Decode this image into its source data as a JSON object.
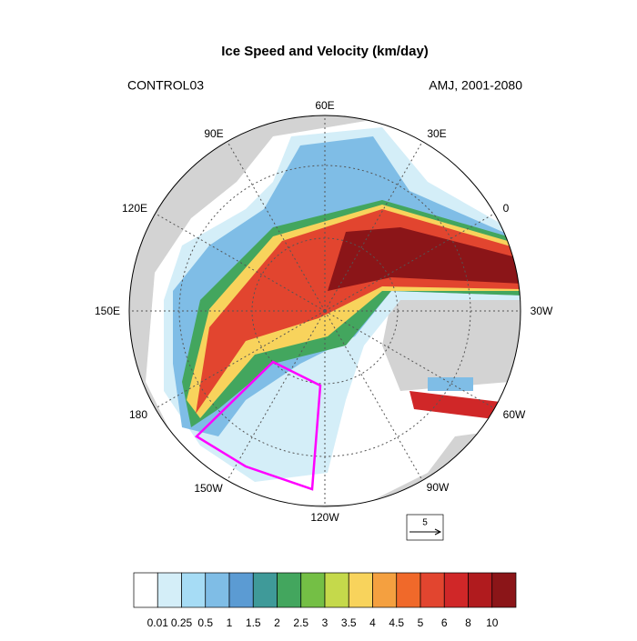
{
  "header": {
    "title": "Ice Speed and Velocity (km/day)",
    "left_label": "CONTROL03",
    "right_label": "AMJ, 2001-2080"
  },
  "map": {
    "longitude_labels": [
      "60E",
      "30E",
      "0",
      "30W",
      "60W",
      "90W",
      "120W",
      "150W",
      "180",
      "150E",
      "120E",
      "90E"
    ]
  },
  "reference_vector": {
    "label": "5"
  },
  "colorbar": {
    "levels": [
      0.01,
      0.25,
      0.5,
      1,
      1.5,
      2,
      2.5,
      3,
      3.5,
      4,
      4.5,
      5,
      6,
      8,
      10
    ],
    "colors": [
      "#ffffff",
      "#d4eef8",
      "#a6dcf5",
      "#7fbde6",
      "#5b9bd3",
      "#3f9a99",
      "#43a65e",
      "#74bf45",
      "#c5d94b",
      "#f8d35c",
      "#f4a040",
      "#f0692a",
      "#e2452f",
      "#d02728",
      "#b01b1e",
      "#8b1518"
    ]
  }
}
